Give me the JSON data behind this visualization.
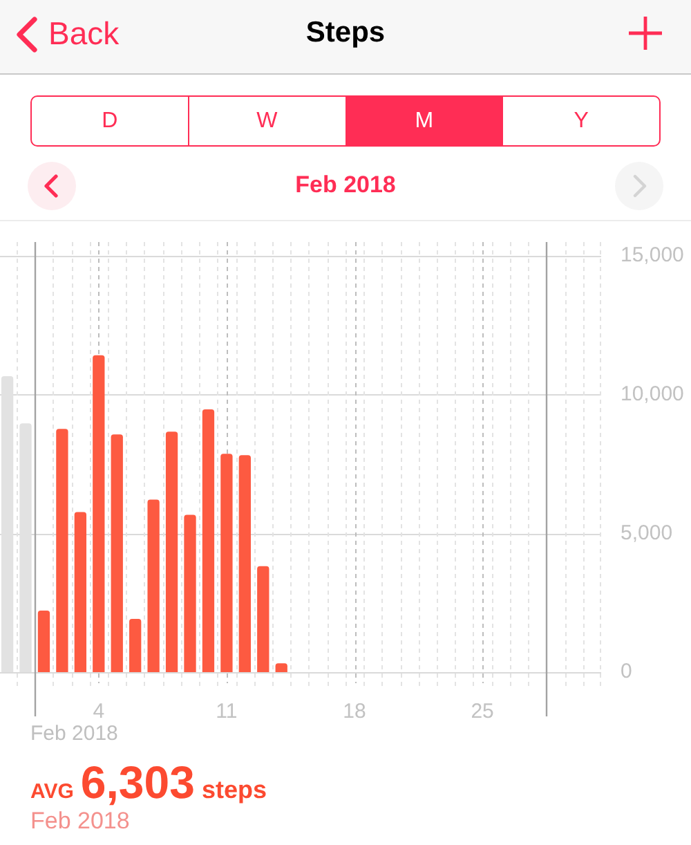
{
  "chart_data": {
    "type": "bar",
    "title": "Steps",
    "subtitle": "Feb 2018",
    "xlabel": "Feb 2018",
    "annotations": [
      "Back",
      "D",
      "W",
      "M",
      "Y",
      "AVG",
      "6,303",
      "steps",
      "Feb 2018"
    ],
    "x": [
      -1,
      0,
      1,
      2,
      3,
      4,
      5,
      6,
      7,
      8,
      9,
      10,
      11,
      12,
      13,
      14
    ],
    "values": [
      10650,
      8950,
      2200,
      8750,
      5750,
      11400,
      8550,
      1900,
      6200,
      8650,
      5650,
      9450,
      7850,
      7800,
      3800,
      300
    ],
    "colors": [
      "#e2e2e2",
      "#e2e2e2",
      "#fd5a41",
      "#fd5a41",
      "#fd5a41",
      "#fd5a41",
      "#fd5a41",
      "#fd5a41",
      "#fd5a41",
      "#fd5a41",
      "#fd5a41",
      "#fd5a41",
      "#fd5a41",
      "#fd5a41",
      "#fd5a41",
      "#fd5a41"
    ],
    "xlim": [
      -1.4,
      31.5
    ],
    "xticks": [
      4,
      11,
      18,
      25
    ],
    "ylim": [
      0,
      15500
    ],
    "yticks": [
      0,
      {
        "value": 5000,
        "label": "5,000"
      },
      {
        "value": 10000,
        "label": "10,000"
      },
      {
        "value": 15000,
        "label": "15,000"
      }
    ],
    "ref_lines": [
      {
        "axis": "x",
        "value": 0.5,
        "color": "#a3a3a3"
      },
      {
        "axis": "x",
        "value": 28.5,
        "color": "#a3a3a3"
      }
    ],
    "grid": true
  }
}
